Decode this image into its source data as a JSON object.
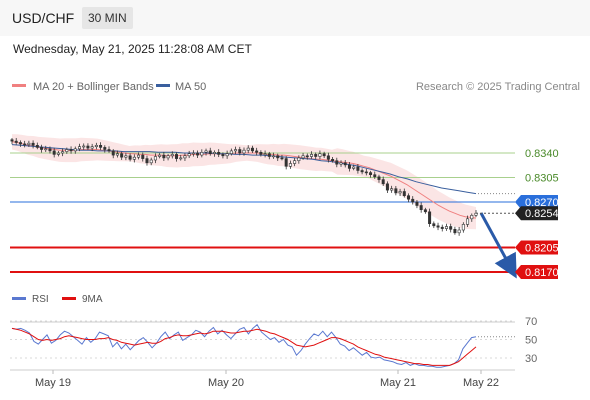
{
  "header": {
    "symbol": "USD/CHF",
    "timeframe": "30 MIN",
    "datetime": "Wednesday, May 21, 2025 11:28:08 AM CET"
  },
  "legend": {
    "ma20": "MA 20 + Bollinger Bands",
    "ma50": "MA 50",
    "credit": "Research © 2025 Trading Central"
  },
  "rsi_legend": {
    "rsi": "RSI",
    "ma": "9MA"
  },
  "colors": {
    "ma20": "#f08080",
    "ma50": "#3a5f9e",
    "bands": "#fadada",
    "resistance": "#a8d08d",
    "pivot": "#2a6fdb",
    "support": "#e01010",
    "rsi": "#5a78d0",
    "rsi_ma": "#e01010",
    "candle": "#333333"
  },
  "chart_data": {
    "type": "candlestick",
    "x_ticks": [
      "May 19",
      "May 20",
      "May 21",
      "May 22"
    ],
    "levels": [
      {
        "value": 0.834,
        "label": "0.8340",
        "kind": "resistance"
      },
      {
        "value": 0.8305,
        "label": "0.8305",
        "kind": "resistance"
      },
      {
        "value": 0.827,
        "label": "0.8270",
        "kind": "pivot"
      },
      {
        "value": 0.8205,
        "label": "0.8205",
        "kind": "support"
      },
      {
        "value": 0.817,
        "label": "0.8170",
        "kind": "support"
      }
    ],
    "last_price": {
      "value": 0.8254,
      "label": "0.8254"
    },
    "close": [
      0.8357,
      0.8355,
      0.8353,
      0.8352,
      0.8354,
      0.8351,
      0.8348,
      0.8345,
      0.8346,
      0.8343,
      0.8338,
      0.834,
      0.8342,
      0.8345,
      0.8343,
      0.8346,
      0.8349,
      0.835,
      0.8347,
      0.8349,
      0.8351,
      0.8348,
      0.8345,
      0.8343,
      0.8337,
      0.8339,
      0.8334,
      0.8336,
      0.8331,
      0.8334,
      0.8337,
      0.8332,
      0.8326,
      0.833,
      0.8335,
      0.8337,
      0.8333,
      0.8336,
      0.8338,
      0.8332,
      0.8333,
      0.8336,
      0.8339,
      0.834,
      0.8337,
      0.8341,
      0.8343,
      0.8339,
      0.8341,
      0.8338,
      0.8336,
      0.8339,
      0.8343,
      0.8345,
      0.834,
      0.8344,
      0.8347,
      0.8343,
      0.8341,
      0.8338,
      0.8339,
      0.8335,
      0.8336,
      0.8333,
      0.8332,
      0.8321,
      0.8325,
      0.8329,
      0.8333,
      0.8336,
      0.8335,
      0.8338,
      0.8335,
      0.8339,
      0.8336,
      0.8331,
      0.8329,
      0.8324,
      0.8326,
      0.8323,
      0.8318,
      0.832,
      0.8315,
      0.8313,
      0.8312,
      0.8309,
      0.8306,
      0.8302,
      0.8296,
      0.8287,
      0.8289,
      0.8283,
      0.8285,
      0.8279,
      0.8274,
      0.827,
      0.8265,
      0.8259,
      0.8256,
      0.8239,
      0.8236,
      0.8234,
      0.8232,
      0.8235,
      0.8231,
      0.8226,
      0.823,
      0.8238,
      0.8246,
      0.8251,
      0.8254
    ],
    "ma20": [
      0.8356,
      0.8355,
      0.8353,
      0.8351,
      0.835,
      0.8348,
      0.8347,
      0.8346,
      0.8345,
      0.8344,
      0.8344,
      0.8344,
      0.8344,
      0.8345,
      0.8345,
      0.8345,
      0.8345,
      0.8344,
      0.8343,
      0.8342,
      0.8341,
      0.834,
      0.8339,
      0.8339,
      0.8338,
      0.8338,
      0.8337,
      0.8337,
      0.8337,
      0.8336,
      0.8336,
      0.8336,
      0.8337,
      0.8337,
      0.8338,
      0.8338,
      0.8338,
      0.8339,
      0.8339,
      0.8339,
      0.8339,
      0.8339,
      0.834,
      0.834,
      0.834,
      0.834,
      0.834,
      0.8339,
      0.8338,
      0.8338,
      0.8337,
      0.8337,
      0.8336,
      0.8335,
      0.8334,
      0.8333,
      0.8332,
      0.8331,
      0.8331,
      0.833,
      0.8329,
      0.8328,
      0.8327,
      0.8326,
      0.8325,
      0.8323,
      0.8321,
      0.8319,
      0.8316,
      0.8313,
      0.831,
      0.8307,
      0.8303,
      0.8299,
      0.8295,
      0.829,
      0.8285,
      0.828,
      0.8275,
      0.827,
      0.8265,
      0.8261,
      0.8257,
      0.8254,
      0.8251,
      0.8249,
      0.8248,
      0.8247
    ],
    "ma50": [
      0.8352,
      0.8351,
      0.835,
      0.8349,
      0.8348,
      0.8347,
      0.8346,
      0.8345,
      0.8344,
      0.8344,
      0.8343,
      0.8343,
      0.8343,
      0.8342,
      0.8342,
      0.8342,
      0.8342,
      0.8341,
      0.8341,
      0.8341,
      0.834,
      0.834,
      0.834,
      0.834,
      0.8339,
      0.8339,
      0.8338,
      0.8338,
      0.8337,
      0.8337,
      0.8336,
      0.8335,
      0.8334,
      0.8333,
      0.8332,
      0.8331,
      0.8329,
      0.8328,
      0.8326,
      0.8324,
      0.8322,
      0.8319,
      0.8316,
      0.8313,
      0.831,
      0.8306,
      0.8303,
      0.8299,
      0.8296,
      0.8293,
      0.829,
      0.8288,
      0.8286,
      0.8284,
      0.8282
    ],
    "rsi": [
      62,
      61,
      62,
      60,
      57,
      48,
      45,
      50,
      55,
      46,
      49,
      55,
      59,
      57,
      53,
      49,
      45,
      52,
      47,
      51,
      58,
      56,
      54,
      42,
      47,
      40,
      45,
      39,
      44,
      49,
      52,
      47,
      41,
      46,
      53,
      58,
      51,
      55,
      58,
      49,
      52,
      55,
      60,
      58,
      53,
      59,
      63,
      56,
      60,
      55,
      51,
      56,
      61,
      63,
      56,
      62,
      66,
      58,
      54,
      50,
      52,
      47,
      50,
      44,
      42,
      33,
      38,
      45,
      51,
      56,
      54,
      59,
      53,
      58,
      52,
      45,
      43,
      38,
      41,
      37,
      33,
      36,
      31,
      30,
      31,
      28,
      27,
      26,
      24,
      23,
      25,
      22,
      24,
      22,
      22,
      21,
      21,
      20,
      20,
      21,
      22,
      24,
      28,
      40,
      46,
      52,
      53
    ],
    "rsi_ma": [
      62,
      61,
      60,
      58,
      56,
      53,
      50,
      49,
      50,
      49,
      50,
      51,
      53,
      54,
      53,
      52,
      51,
      50,
      50,
      50,
      51,
      51,
      52,
      50,
      49,
      47,
      46,
      45,
      44,
      45,
      46,
      47,
      46,
      46,
      48,
      51,
      52,
      54,
      55,
      54,
      54,
      55,
      56,
      57,
      56,
      57,
      59,
      59,
      59,
      58,
      57,
      57,
      58,
      59,
      59,
      60,
      61,
      60,
      59,
      57,
      56,
      54,
      52,
      50,
      47,
      44,
      43,
      42,
      43,
      44,
      46,
      48,
      50,
      52,
      52,
      51,
      49,
      47,
      45,
      42,
      40,
      38,
      36,
      34,
      33,
      31,
      30,
      29,
      28,
      27,
      26,
      25,
      24,
      24,
      23,
      23,
      22,
      22,
      22,
      22,
      22,
      24,
      26,
      30,
      34,
      38,
      42
    ],
    "rsi_levels": [
      {
        "value": 70,
        "label": "70"
      },
      {
        "value": 50,
        "label": "50"
      },
      {
        "value": 30,
        "label": "30"
      }
    ]
  }
}
